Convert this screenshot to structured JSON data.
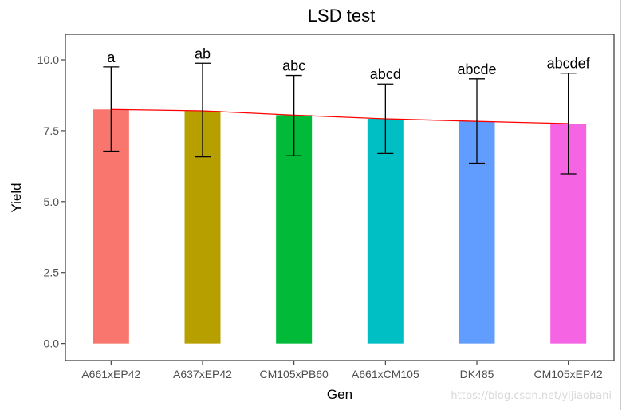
{
  "chart_data": {
    "type": "bar",
    "title": "LSD test",
    "xlabel": "Gen",
    "ylabel": "Yield",
    "ylim": [
      -0.6,
      10.9
    ],
    "yticks": [
      0.0,
      2.5,
      5.0,
      7.5,
      10.0
    ],
    "ytick_labels": [
      "0.0",
      "2.5",
      "5.0",
      "7.5",
      "10.0"
    ],
    "categories": [
      "A661xEP42",
      "A637xEP42",
      "CM105xPB60",
      "A661xCM105",
      "DK485",
      "CM105xEP42"
    ],
    "values": [
      8.25,
      8.2,
      8.05,
      7.92,
      7.83,
      7.75
    ],
    "error_upper": [
      9.75,
      9.88,
      9.45,
      9.15,
      9.33,
      9.53
    ],
    "error_lower": [
      6.78,
      6.58,
      6.62,
      6.7,
      6.36,
      5.98
    ],
    "groups": [
      "a",
      "ab",
      "abc",
      "abcd",
      "abcde",
      "abcdef"
    ],
    "colors": [
      "#F8766D",
      "#B79F00",
      "#00BA38",
      "#00BFC4",
      "#619CFF",
      "#F564E3"
    ],
    "trend_line_color": "#ff0000"
  },
  "watermark": "https://blog.csdn.net/yijiaobani"
}
